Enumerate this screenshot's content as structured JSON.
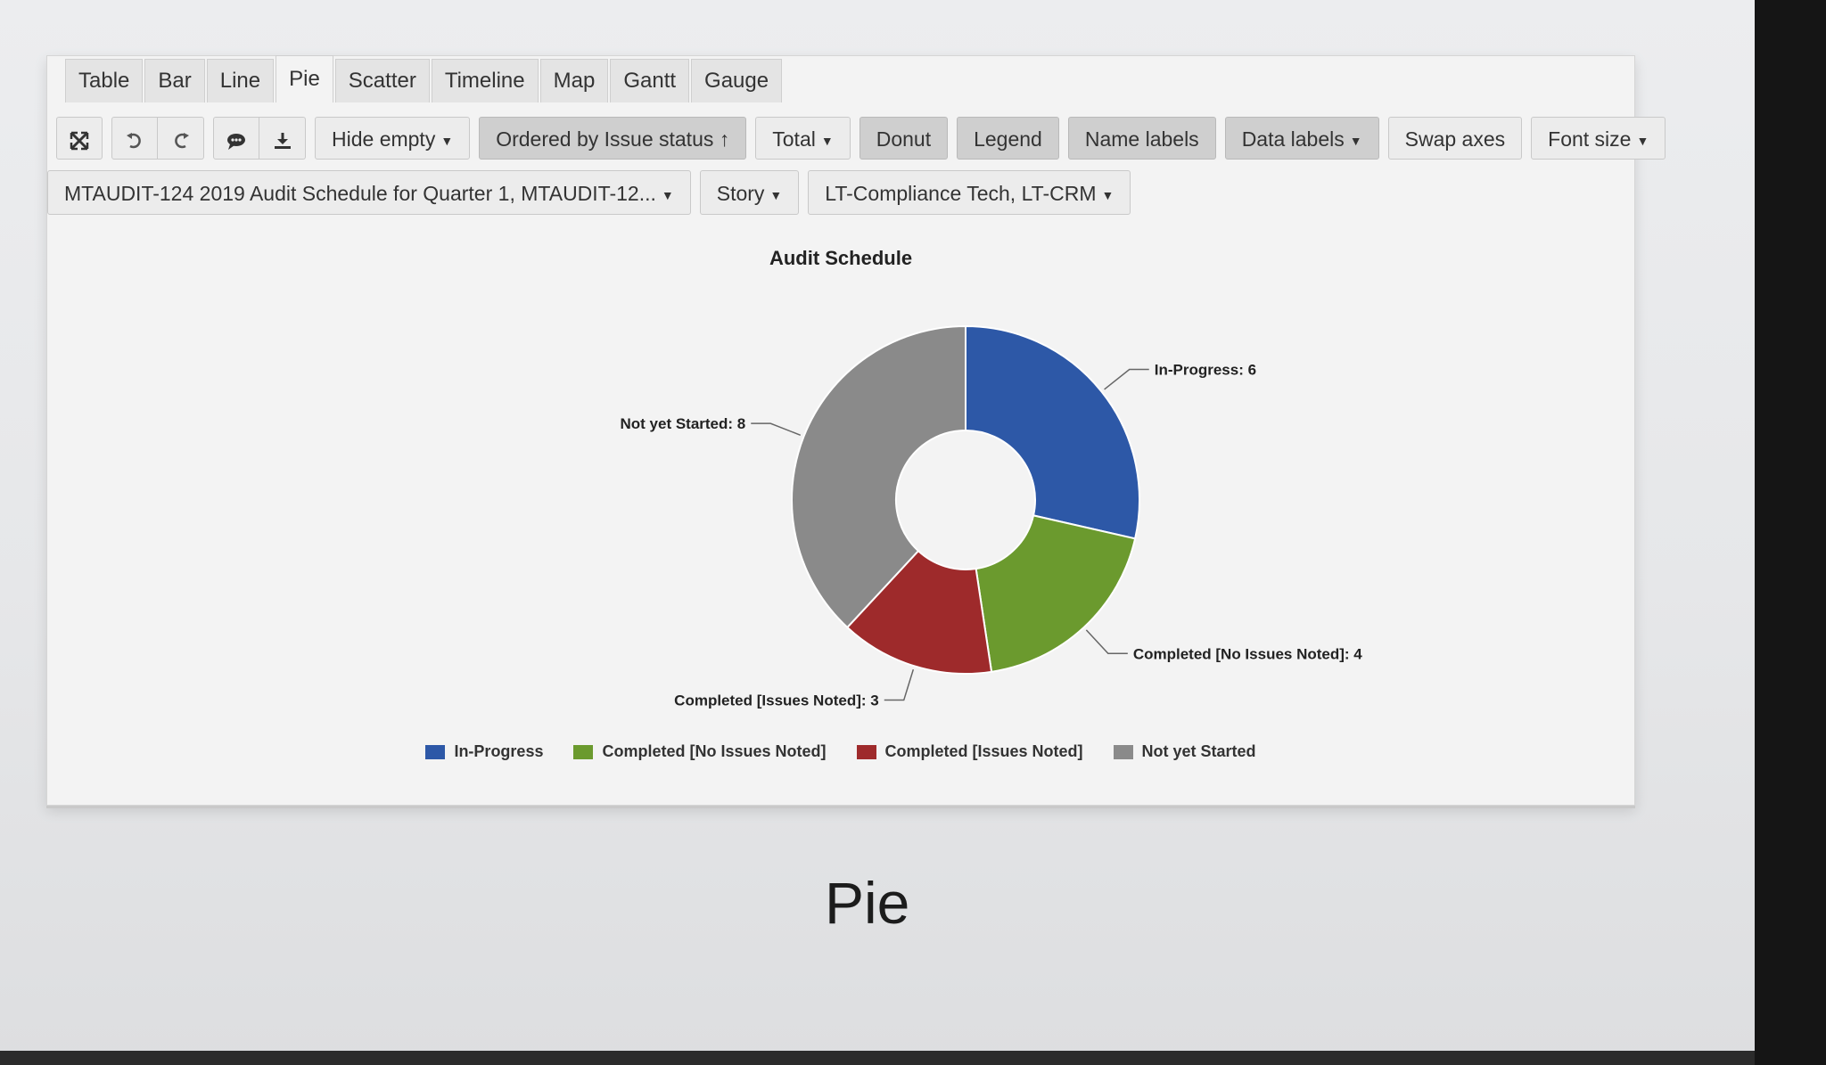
{
  "tabs": [
    "Table",
    "Bar",
    "Line",
    "Pie",
    "Scatter",
    "Timeline",
    "Map",
    "Gantt",
    "Gauge"
  ],
  "active_tab": "Pie",
  "toolbar": {
    "hide_empty": "Hide empty",
    "ordered_by": "Ordered by Issue status ↑",
    "total": "Total",
    "donut": "Donut",
    "legend": "Legend",
    "name_labels": "Name labels",
    "data_labels": "Data labels",
    "swap_axes": "Swap axes",
    "font_size": "Font size"
  },
  "filters": {
    "issues": "MTAUDIT-124 2019 Audit Schedule for Quarter 1, MTAUDIT-12...",
    "issue_type": "Story",
    "components": "LT-Compliance Tech, LT-CRM"
  },
  "chart_data": {
    "type": "pie",
    "donut": true,
    "title": "Audit Schedule",
    "categories": [
      "In-Progress",
      "Completed [No Issues Noted]",
      "Completed [Issues Noted]",
      "Not yet Started"
    ],
    "values": [
      6,
      4,
      3,
      8
    ],
    "colors": [
      "#2d58a7",
      "#6b9a2e",
      "#9e2a2b",
      "#8a8a8a"
    ],
    "data_labels": [
      "In-Progress: 6",
      "Completed [No Issues Noted]: 4",
      "Completed [Issues Noted]: 3",
      "Not yet Started: 8"
    ],
    "legend_position": "bottom"
  },
  "caption": "Pie"
}
